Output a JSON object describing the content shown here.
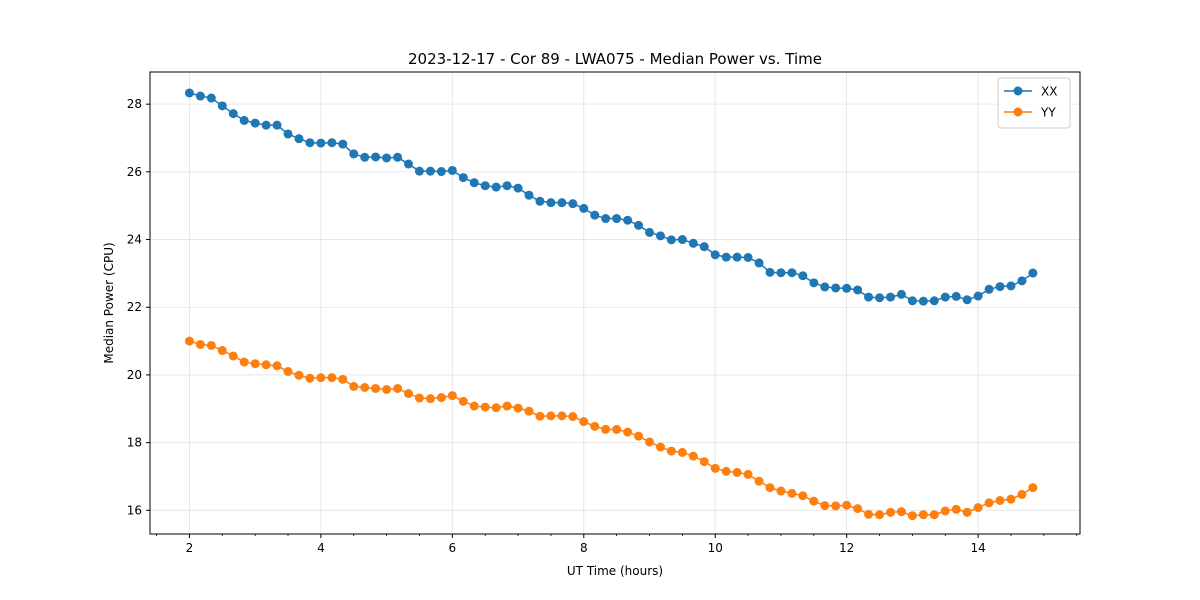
{
  "chart_data": {
    "type": "line",
    "title": "2023-12-17 - Cor 89 - LWA075 - Median Power vs. Time",
    "xlabel": "UT Time (hours)",
    "ylabel": "Median Power (CPU)",
    "xlim": [
      1.4,
      15.55
    ],
    "ylim": [
      15.3,
      28.95
    ],
    "xticks": [
      2,
      4,
      6,
      8,
      10,
      12,
      14
    ],
    "yticks": [
      16,
      18,
      20,
      22,
      24,
      26,
      28
    ],
    "grid": true,
    "legend_position": "top-right",
    "x": [
      2.0,
      2.167,
      2.333,
      2.5,
      2.667,
      2.833,
      3.0,
      3.167,
      3.333,
      3.5,
      3.667,
      3.833,
      4.0,
      4.167,
      4.333,
      4.5,
      4.667,
      4.833,
      5.0,
      5.167,
      5.333,
      5.5,
      5.667,
      5.833,
      6.0,
      6.167,
      6.333,
      6.5,
      6.667,
      6.833,
      7.0,
      7.167,
      7.333,
      7.5,
      7.667,
      7.833,
      8.0,
      8.167,
      8.333,
      8.5,
      8.667,
      8.833,
      9.0,
      9.167,
      9.333,
      9.5,
      9.667,
      9.833,
      10.0,
      10.167,
      10.333,
      10.5,
      10.667,
      10.833,
      11.0,
      11.167,
      11.333,
      11.5,
      11.667,
      11.833,
      12.0,
      12.167,
      12.333,
      12.5,
      12.667,
      12.833,
      13.0,
      13.167,
      13.333,
      13.5,
      13.667,
      13.833,
      14.0,
      14.167,
      14.333,
      14.5,
      14.667,
      14.833
    ],
    "series": [
      {
        "name": "XX",
        "color": "#1f77b4",
        "values": [
          28.33,
          28.24,
          28.18,
          27.95,
          27.72,
          27.52,
          27.44,
          27.38,
          27.38,
          27.12,
          26.98,
          26.86,
          26.85,
          26.86,
          26.82,
          26.53,
          26.43,
          26.44,
          26.41,
          26.43,
          26.23,
          26.02,
          26.02,
          26.01,
          26.04,
          25.83,
          25.68,
          25.59,
          25.55,
          25.59,
          25.52,
          25.31,
          25.13,
          25.09,
          25.09,
          25.06,
          24.92,
          24.72,
          24.62,
          24.62,
          24.57,
          24.42,
          24.21,
          24.11,
          23.99,
          24.0,
          23.89,
          23.79,
          23.55,
          23.48,
          23.48,
          23.47,
          23.31,
          23.03,
          23.02,
          23.02,
          22.93,
          22.72,
          22.6,
          22.57,
          22.56,
          22.51,
          22.3,
          22.28,
          22.3,
          22.38,
          22.19,
          22.18,
          22.19,
          22.3,
          22.32,
          22.22,
          22.33,
          22.53,
          22.61,
          22.63,
          22.78,
          23.01
        ]
      },
      {
        "name": "YY",
        "color": "#ff7f0e",
        "values": [
          21.0,
          20.9,
          20.87,
          20.72,
          20.56,
          20.38,
          20.33,
          20.3,
          20.27,
          20.1,
          19.99,
          19.9,
          19.92,
          19.92,
          19.87,
          19.66,
          19.63,
          19.6,
          19.57,
          19.6,
          19.45,
          19.32,
          19.3,
          19.33,
          19.39,
          19.22,
          19.08,
          19.05,
          19.03,
          19.08,
          19.02,
          18.93,
          18.78,
          18.79,
          18.79,
          18.77,
          18.62,
          18.48,
          18.39,
          18.39,
          18.31,
          18.19,
          18.02,
          17.87,
          17.75,
          17.71,
          17.6,
          17.44,
          17.24,
          17.15,
          17.12,
          17.06,
          16.86,
          16.67,
          16.57,
          16.5,
          16.43,
          16.27,
          16.14,
          16.13,
          16.15,
          16.05,
          15.88,
          15.87,
          15.94,
          15.96,
          15.84,
          15.87,
          15.87,
          15.98,
          16.03,
          15.94,
          16.08,
          16.22,
          16.29,
          16.33,
          16.47,
          16.67
        ]
      }
    ]
  }
}
